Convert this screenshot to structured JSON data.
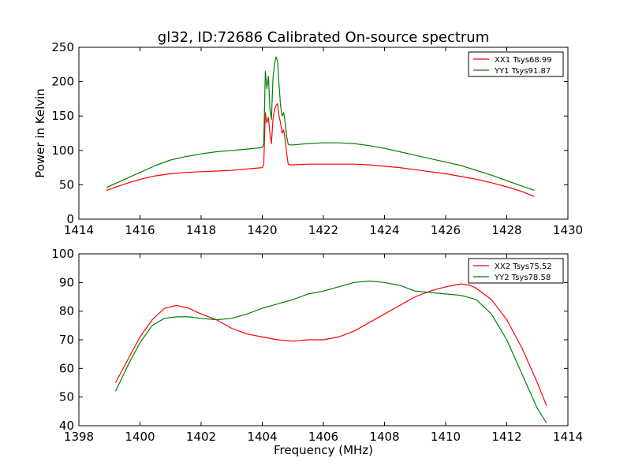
{
  "figure": {
    "title": "gl32, ID:72686 Calibrated On-source spectrum",
    "ylabel": "Power in Kelvin",
    "xlabel": "Frequency (MHz)"
  },
  "chart_data": [
    {
      "type": "line",
      "title": "gl32, ID:72686 Calibrated On-source spectrum",
      "xlabel": "",
      "ylabel": "Power in Kelvin",
      "xlim": [
        1414,
        1430
      ],
      "ylim": [
        0,
        250
      ],
      "xticks": [
        "1414",
        "1416",
        "1418",
        "1420",
        "1422",
        "1424",
        "1426",
        "1428",
        "1430"
      ],
      "yticks": [
        "0",
        "50",
        "100",
        "150",
        "200",
        "250"
      ],
      "grid": false,
      "legend_position": "top-right",
      "series": [
        {
          "name": "XX1 Tsys68.99",
          "color": "#ff0000",
          "x": [
            1414.9,
            1415.3,
            1415.7,
            1416.1,
            1416.5,
            1417.0,
            1417.5,
            1418.0,
            1418.5,
            1419.0,
            1419.5,
            1420.0,
            1420.05,
            1420.1,
            1420.15,
            1420.2,
            1420.25,
            1420.3,
            1420.35,
            1420.4,
            1420.45,
            1420.5,
            1420.55,
            1420.6,
            1420.65,
            1420.7,
            1420.75,
            1420.8,
            1420.85,
            1420.9,
            1421.0,
            1421.5,
            1422.0,
            1422.5,
            1423.0,
            1423.5,
            1424.0,
            1424.5,
            1425.0,
            1425.5,
            1426.0,
            1426.5,
            1427.0,
            1427.5,
            1428.0,
            1428.5,
            1428.9
          ],
          "y": [
            42,
            48,
            54,
            59,
            63,
            66,
            68,
            69,
            70,
            71,
            73,
            75,
            80,
            155,
            140,
            148,
            125,
            110,
            145,
            160,
            165,
            168,
            150,
            140,
            125,
            130,
            115,
            95,
            80,
            79,
            79,
            80,
            80,
            80,
            80,
            79,
            77,
            75,
            72,
            69,
            66,
            62,
            58,
            53,
            47,
            40,
            33
          ]
        },
        {
          "name": "YY1 Tsys91.87",
          "color": "#008000",
          "x": [
            1414.9,
            1415.3,
            1415.7,
            1416.1,
            1416.5,
            1417.0,
            1417.5,
            1418.0,
            1418.5,
            1419.0,
            1419.5,
            1420.0,
            1420.05,
            1420.1,
            1420.15,
            1420.2,
            1420.25,
            1420.3,
            1420.35,
            1420.4,
            1420.45,
            1420.5,
            1420.55,
            1420.6,
            1420.65,
            1420.7,
            1420.75,
            1420.8,
            1420.85,
            1420.9,
            1421.0,
            1421.5,
            1422.0,
            1422.5,
            1423.0,
            1423.5,
            1424.0,
            1424.5,
            1425.0,
            1425.5,
            1426.0,
            1426.5,
            1427.0,
            1427.5,
            1428.0,
            1428.5,
            1428.9
          ],
          "y": [
            46,
            54,
            62,
            70,
            78,
            86,
            91,
            95,
            98,
            100,
            102,
            104,
            110,
            215,
            190,
            208,
            160,
            145,
            205,
            225,
            236,
            230,
            195,
            165,
            150,
            155,
            140,
            120,
            109,
            108,
            108,
            110,
            111,
            111,
            110,
            107,
            103,
            98,
            93,
            88,
            83,
            78,
            71,
            64,
            56,
            48,
            42
          ]
        }
      ]
    },
    {
      "type": "line",
      "title": "",
      "xlabel": "Frequency (MHz)",
      "ylabel": "",
      "xlim": [
        1398,
        1414
      ],
      "ylim": [
        40,
        100
      ],
      "xticks": [
        "1398",
        "1400",
        "1402",
        "1404",
        "1406",
        "1408",
        "1410",
        "1412",
        "1414"
      ],
      "yticks": [
        "40",
        "50",
        "60",
        "70",
        "80",
        "90",
        "100"
      ],
      "grid": false,
      "legend_position": "top-right",
      "series": [
        {
          "name": "XX2 Tsys75.52",
          "color": "#ff0000",
          "x": [
            1399.2,
            1399.6,
            1400.0,
            1400.4,
            1400.8,
            1401.2,
            1401.6,
            1402.0,
            1402.5,
            1403.0,
            1403.5,
            1404.0,
            1404.5,
            1405.0,
            1405.5,
            1406.0,
            1406.5,
            1407.0,
            1407.5,
            1408.0,
            1408.5,
            1409.0,
            1409.5,
            1410.0,
            1410.5,
            1410.8,
            1411.0,
            1411.5,
            1412.0,
            1412.5,
            1413.0,
            1413.3
          ],
          "y": [
            55,
            63,
            71,
            77,
            81,
            82,
            81,
            79,
            77,
            74,
            72,
            71,
            70,
            69.5,
            70,
            70,
            71,
            73,
            76,
            79,
            82,
            85,
            87,
            88.5,
            89.5,
            89,
            88,
            84,
            77,
            67,
            55,
            47
          ]
        },
        {
          "name": "YY2 Tsys78.58",
          "color": "#008000",
          "x": [
            1399.2,
            1399.6,
            1400.0,
            1400.4,
            1400.8,
            1401.2,
            1401.6,
            1402.0,
            1402.5,
            1403.0,
            1403.5,
            1404.0,
            1404.5,
            1405.0,
            1405.5,
            1406.0,
            1406.5,
            1407.0,
            1407.5,
            1408.0,
            1408.5,
            1409.0,
            1409.5,
            1410.0,
            1410.5,
            1411.0,
            1411.5,
            1412.0,
            1412.5,
            1413.0,
            1413.3
          ],
          "y": [
            52,
            61,
            69,
            75,
            77.5,
            78,
            78,
            77.5,
            77,
            77.5,
            79,
            81,
            82.5,
            84,
            86,
            87,
            88.5,
            90,
            90.5,
            90,
            89,
            87,
            86.5,
            86,
            85.5,
            84,
            79,
            70,
            58,
            46,
            41
          ]
        }
      ]
    }
  ]
}
